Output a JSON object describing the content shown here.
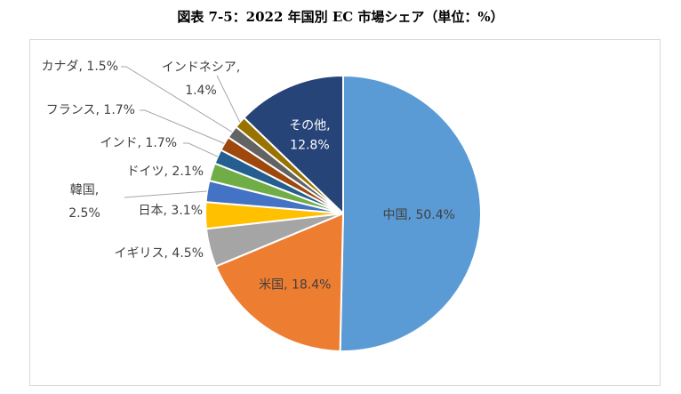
{
  "chart_data": {
    "type": "pie",
    "title": "図表 7-5：2022 年国別 EC 市場シェア（単位：%）",
    "slices": [
      {
        "label": "中国",
        "value": 50.4,
        "text": "中国, 50.4%",
        "color": "#5B9BD5"
      },
      {
        "label": "米国",
        "value": 18.4,
        "text": "米国, 18.4%",
        "color": "#ED7D31"
      },
      {
        "label": "イギリス",
        "value": 4.5,
        "text": "イギリス, 4.5%",
        "color": "#A5A5A5"
      },
      {
        "label": "日本",
        "value": 3.1,
        "text": "日本, 3.1%",
        "color": "#FFC000"
      },
      {
        "label": "韓国",
        "value": 2.5,
        "text": "韓国,|2.5%",
        "color": "#4472C4"
      },
      {
        "label": "ドイツ",
        "value": 2.1,
        "text": "ドイツ, 2.1%",
        "color": "#70AD47"
      },
      {
        "label": "インド",
        "value": 1.7,
        "text": "インド, 1.7%",
        "color": "#255E91"
      },
      {
        "label": "フランス",
        "value": 1.7,
        "text": "フランス, 1.7%",
        "color": "#9E480E"
      },
      {
        "label": "カナダ",
        "value": 1.5,
        "text": "カナダ, 1.5%",
        "color": "#636363"
      },
      {
        "label": "インドネシア",
        "value": 1.4,
        "text": "インドネシア,|1.4%",
        "color": "#997300"
      },
      {
        "label": "その他",
        "value": 12.8,
        "text": "その他,|12.8%",
        "color": "#264478"
      }
    ]
  }
}
